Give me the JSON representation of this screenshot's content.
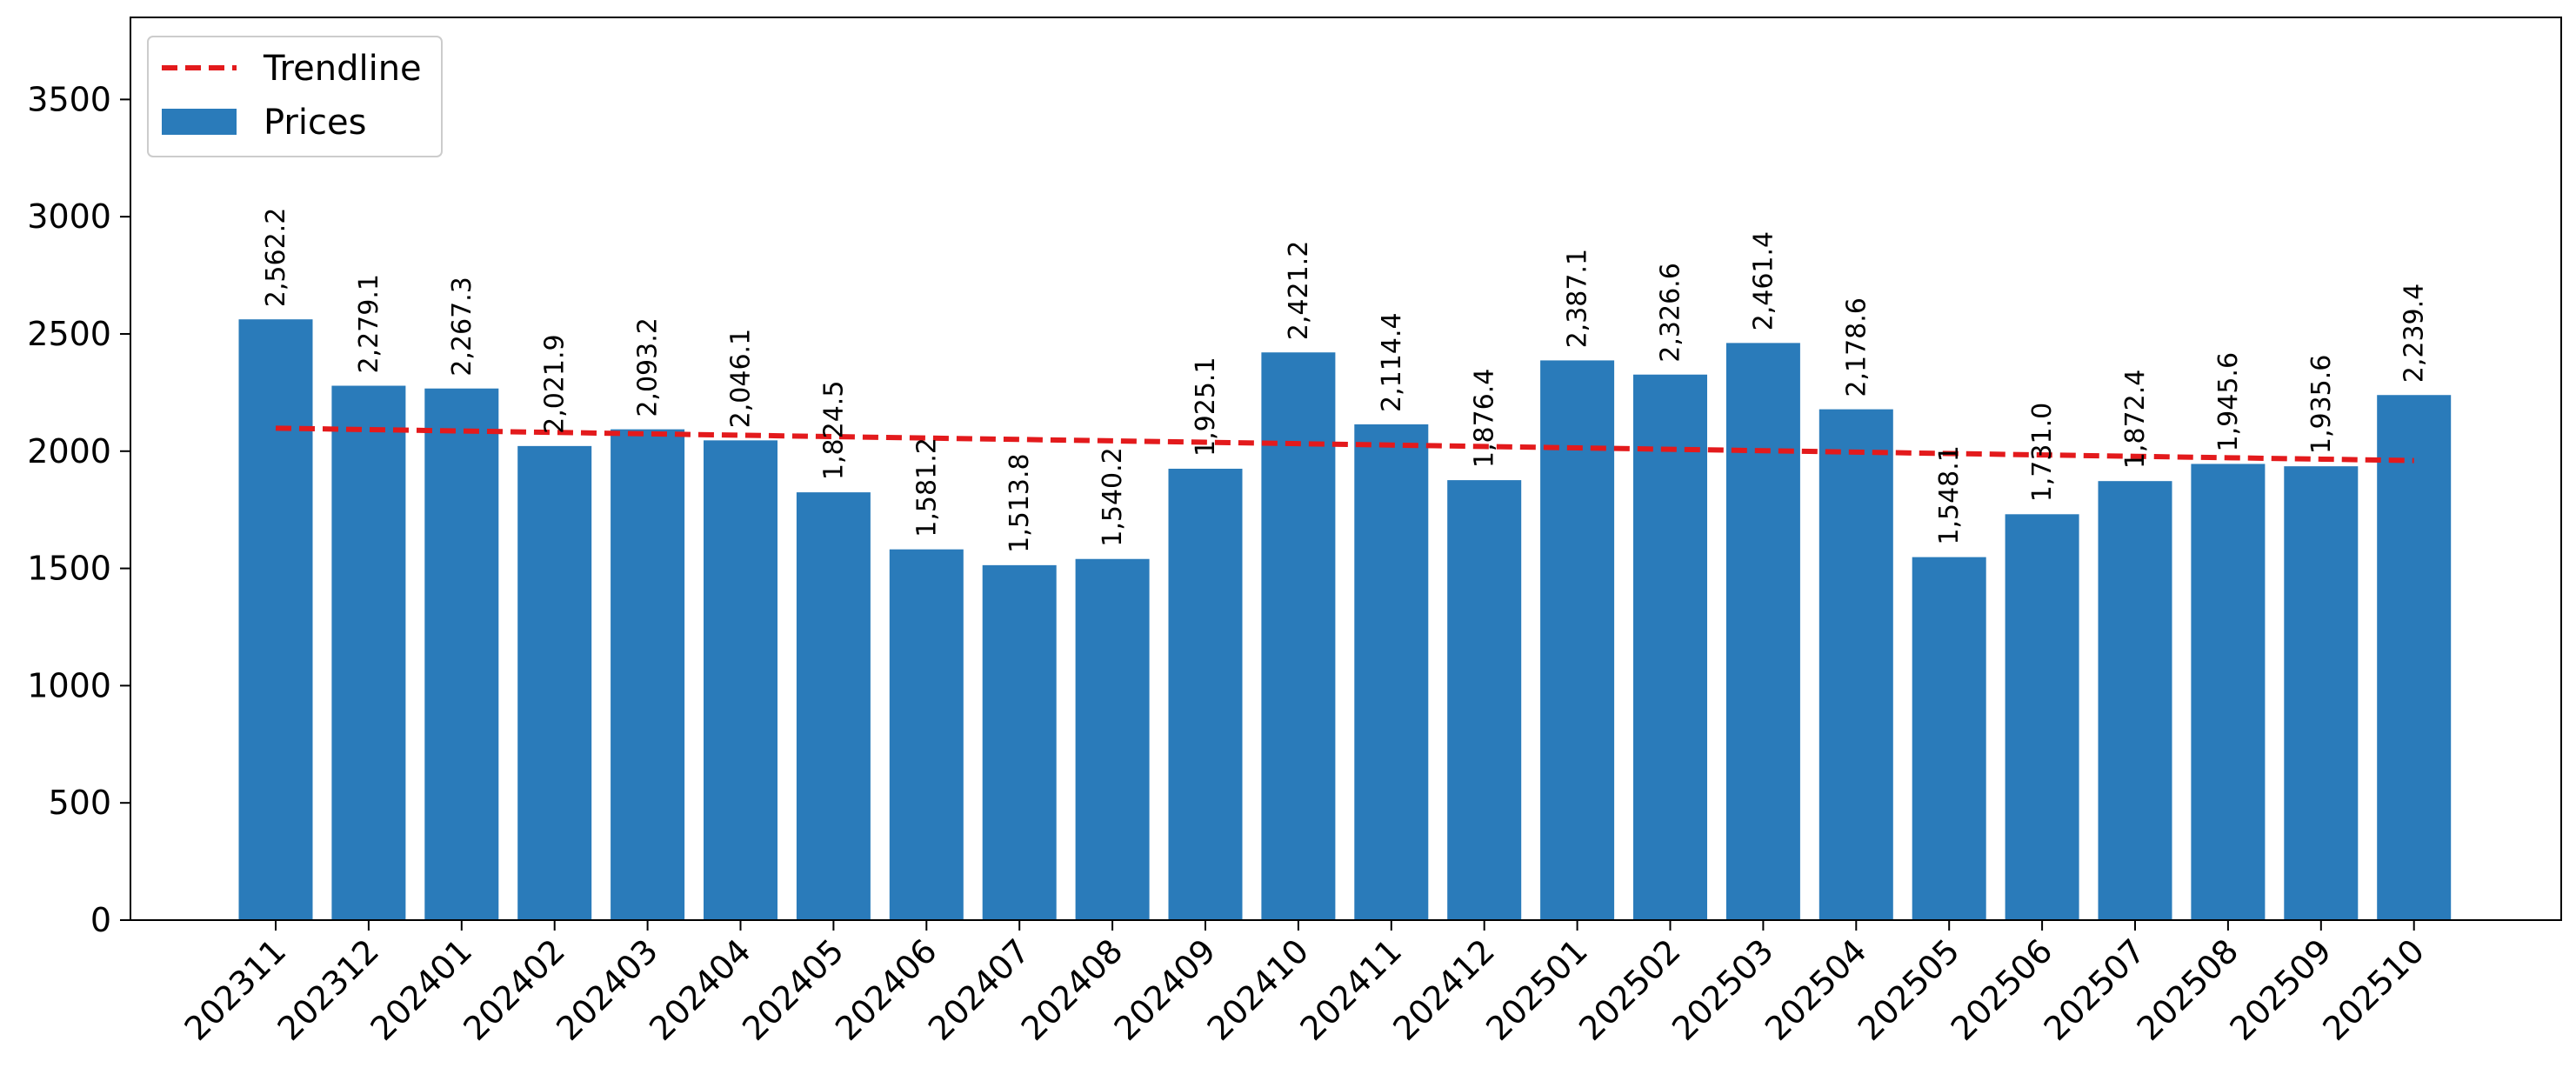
{
  "colors": {
    "bar": "#2a7bba",
    "trendline": "#e31a1c",
    "axis": "#000000",
    "background": "#ffffff"
  },
  "chart_data": {
    "type": "bar",
    "categories": [
      "202311",
      "202312",
      "202401",
      "202402",
      "202403",
      "202404",
      "202405",
      "202406",
      "202407",
      "202408",
      "202409",
      "202410",
      "202411",
      "202412",
      "202501",
      "202502",
      "202503",
      "202504",
      "202505",
      "202506",
      "202507",
      "202508",
      "202509",
      "202510"
    ],
    "series": [
      {
        "name": "Prices",
        "type": "bar",
        "values": [
          2562.2,
          2279.1,
          2267.3,
          2021.9,
          2093.2,
          2046.1,
          1824.5,
          1581.2,
          1513.8,
          1540.2,
          1925.1,
          2421.2,
          2114.4,
          1876.4,
          2387.1,
          2326.6,
          2461.4,
          2178.6,
          1548.1,
          1731.0,
          1872.4,
          1945.6,
          1935.6,
          2239.4
        ],
        "labels": [
          "2,562.2",
          "2,279.1",
          "2,267.3",
          "2,021.9",
          "2,093.2",
          "2,046.1",
          "1,824.5",
          "1,581.2",
          "1,513.8",
          "1,540.2",
          "1,925.1",
          "2,421.2",
          "2,114.4",
          "1,876.4",
          "2,387.1",
          "2,326.6",
          "2,461.4",
          "2,178.6",
          "1,548.1",
          "1,731.0",
          "1,872.4",
          "1,945.6",
          "1,935.6",
          "2,239.4"
        ]
      },
      {
        "name": "Trendline",
        "type": "line",
        "style": "dashed",
        "values": [
          2098,
          2092,
          2086,
          2080,
          2074,
          2068,
          2062,
          2056,
          2050,
          2044,
          2038,
          2032,
          2026,
          2020,
          2014,
          2008,
          2002,
          1996,
          1990,
          1984,
          1978,
          1972,
          1966,
          1960
        ]
      }
    ],
    "title": "",
    "xlabel": "",
    "ylabel": "",
    "ylim": [
      0,
      3850
    ],
    "yticks": [
      0,
      500,
      1000,
      1500,
      2000,
      2500,
      3000,
      3500
    ],
    "xtick_rotation": 45,
    "grid": false,
    "legend": {
      "placement": "top-left",
      "entries": [
        "Trendline",
        "Prices"
      ]
    }
  }
}
